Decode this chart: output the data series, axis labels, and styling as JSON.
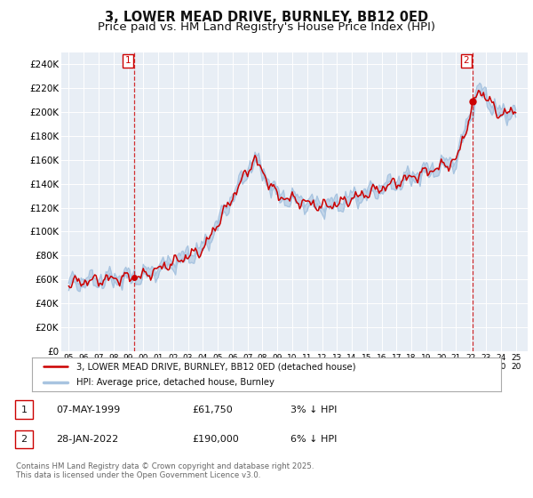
{
  "title": "3, LOWER MEAD DRIVE, BURNLEY, BB12 0ED",
  "subtitle": "Price paid vs. HM Land Registry's House Price Index (HPI)",
  "title_fontsize": 10.5,
  "subtitle_fontsize": 9.5,
  "ylim": [
    0,
    250000
  ],
  "yticks": [
    0,
    20000,
    40000,
    60000,
    80000,
    100000,
    120000,
    140000,
    160000,
    180000,
    200000,
    220000,
    240000
  ],
  "ytick_labels": [
    "£0",
    "£20K",
    "£40K",
    "£60K",
    "£80K",
    "£100K",
    "£120K",
    "£140K",
    "£160K",
    "£180K",
    "£200K",
    "£220K",
    "£240K"
  ],
  "hpi_color": "#a8c4e0",
  "price_color": "#cc0000",
  "marker_box_color": "#cc0000",
  "legend_line1": "3, LOWER MEAD DRIVE, BURNLEY, BB12 0ED (detached house)",
  "legend_line2": "HPI: Average price, detached house, Burnley",
  "footer1": "Contains HM Land Registry data © Crown copyright and database right 2025.",
  "footer2": "This data is licensed under the Open Government Licence v3.0.",
  "table_row1": [
    "1",
    "07-MAY-1999",
    "£61,750",
    "3% ↓ HPI"
  ],
  "table_row2": [
    "2",
    "28-JAN-2022",
    "£190,000",
    "6% ↓ HPI"
  ],
  "bg_color": "#ffffff",
  "plot_bg_color": "#e8eef5",
  "grid_color": "#ffffff",
  "t1": 1999.37,
  "t2": 2022.08
}
